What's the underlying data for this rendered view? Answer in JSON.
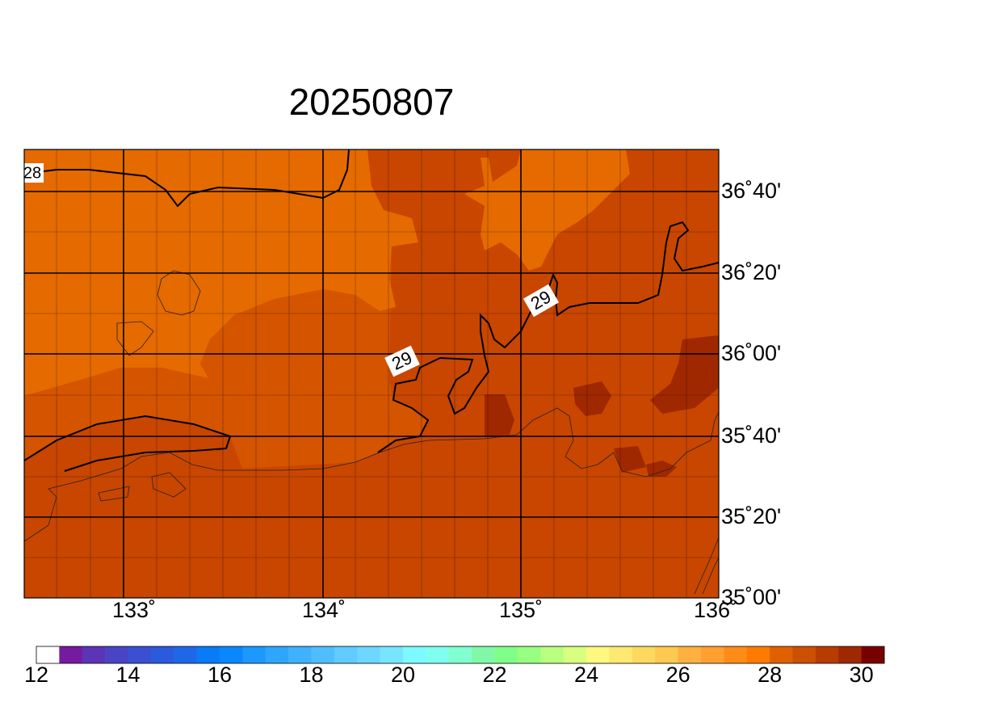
{
  "title": "20250807",
  "lat_labels": [
    "36˚40'",
    "36˚20'",
    "36˚00'",
    "35˚40'",
    "35˚20'",
    "35˚00'"
  ],
  "lon_labels": [
    "133˚",
    "134˚",
    "135˚",
    "136˚"
  ],
  "contour_labels": [
    "28",
    "29",
    "29"
  ],
  "colorbar": {
    "range": [
      12,
      30.5
    ],
    "ticks": [
      12,
      14,
      16,
      18,
      20,
      22,
      24,
      26,
      28,
      30
    ],
    "colors": [
      "#ffffff",
      "#761a9f",
      "#5b35b5",
      "#4a44c5",
      "#3a4fd2",
      "#2b5bdd",
      "#1e68e8",
      "#0a7bf6",
      "#0a87ff",
      "#1d98ff",
      "#2ea5ff",
      "#3fb1ff",
      "#4fbeff",
      "#62cbff",
      "#6ed6ff",
      "#78e5ff",
      "#7dfaff",
      "#80fff0",
      "#80ffd0",
      "#80f8a8",
      "#80ff88",
      "#98ff80",
      "#b8ff80",
      "#d8ff80",
      "#fff880",
      "#ffe870",
      "#ffd860",
      "#ffc850",
      "#ffb040",
      "#ffa030",
      "#ff8c18",
      "#ff7a00",
      "#e06000",
      "#cc5000",
      "#b83c00",
      "#a02800",
      "#780000"
    ]
  }
}
